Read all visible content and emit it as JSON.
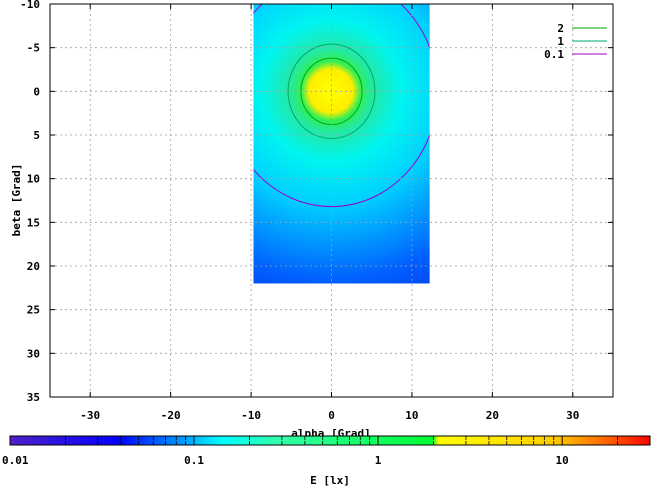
{
  "chart_data": {
    "type": "heatmap",
    "xlabel": "alpha [Grad]",
    "ylabel": "beta [Grad]",
    "xlim": [
      -35,
      35
    ],
    "ylim": [
      -10,
      35
    ],
    "y_reversed": true,
    "grid": true,
    "x_ticks": [
      -30,
      -20,
      -10,
      0,
      10,
      20,
      30
    ],
    "y_ticks": [
      -10,
      -5,
      0,
      5,
      10,
      15,
      20,
      25,
      30,
      35
    ],
    "data_extent": {
      "x": [
        -9.7,
        12.2
      ],
      "y": [
        -10,
        22
      ]
    },
    "peak": {
      "x": 0,
      "y": 0
    },
    "legend_position": "top-right",
    "contours": [
      {
        "level": "2",
        "color": "#00aa00",
        "radius": 3.8
      },
      {
        "level": "1",
        "color": "#00aa66",
        "radius": 5.4
      },
      {
        "level": "0.1",
        "color": "#9900cc",
        "radius": 13.2
      }
    ],
    "colorbar": {
      "label": "E [lx]",
      "scale": "log",
      "range": [
        0.01,
        30
      ],
      "tick_labels": [
        "0.01",
        "0.1",
        "1",
        "10"
      ],
      "tick_values": [
        0.01,
        0.1,
        1,
        10
      ],
      "colors": [
        "#5020c8",
        "#0000ff",
        "#00aaff",
        "#00ffff",
        "#33ffaa",
        "#00ff33",
        "#ffff00",
        "#ffcc00",
        "#ff6600",
        "#ff0000"
      ]
    }
  }
}
